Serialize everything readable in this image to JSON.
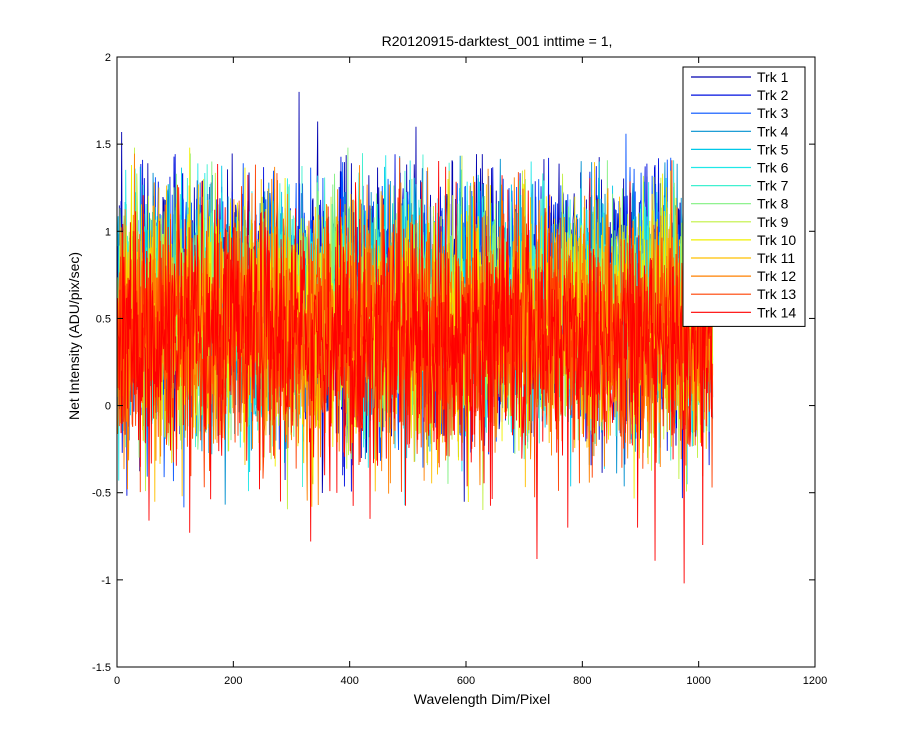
{
  "chart_data": {
    "type": "line",
    "title": "R20120915-darktest_001 inttime = 1,",
    "xlabel": "Wavelength Dim/Pixel",
    "ylabel": "Net Intensity (ADU/pix/sec)",
    "xlim": [
      0,
      1200
    ],
    "ylim": [
      -1.5,
      2
    ],
    "xticks": [
      0,
      200,
      400,
      600,
      800,
      1000,
      1200
    ],
    "yticks": [
      -1.5,
      -1,
      -0.5,
      0,
      0.5,
      1,
      1.5,
      2
    ],
    "xtick_labels": [
      "0",
      "200",
      "400",
      "600",
      "800",
      "1000",
      "1200"
    ],
    "ytick_labels": [
      "-1.5",
      "-1",
      "-0.5",
      "0",
      "0.5",
      "1",
      "1.5",
      "2"
    ],
    "x_range": [
      1,
      1024
    ],
    "grid": false,
    "legend_position": "top-right",
    "series": [
      {
        "name": "Trk 1",
        "color": "#0000b0",
        "mean": 0.62,
        "spread": 0.38
      },
      {
        "name": "Trk 2",
        "color": "#0010e0",
        "mean": 0.6,
        "spread": 0.36
      },
      {
        "name": "Trk 3",
        "color": "#0050ff",
        "mean": 0.58,
        "spread": 0.35
      },
      {
        "name": "Trk 4",
        "color": "#0090d0",
        "mean": 0.56,
        "spread": 0.34
      },
      {
        "name": "Trk 5",
        "color": "#00c8e8",
        "mean": 0.55,
        "spread": 0.33
      },
      {
        "name": "Trk 6",
        "color": "#20e8e8",
        "mean": 0.54,
        "spread": 0.33
      },
      {
        "name": "Trk 7",
        "color": "#40f0d0",
        "mean": 0.53,
        "spread": 0.33
      },
      {
        "name": "Trk 8",
        "color": "#80f080",
        "mean": 0.52,
        "spread": 0.33
      },
      {
        "name": "Trk 9",
        "color": "#c0f040",
        "mean": 0.5,
        "spread": 0.33
      },
      {
        "name": "Trk 10",
        "color": "#f0f000",
        "mean": 0.48,
        "spread": 0.33
      },
      {
        "name": "Trk 11",
        "color": "#ffc000",
        "mean": 0.45,
        "spread": 0.33
      },
      {
        "name": "Trk 12",
        "color": "#ff8000",
        "mean": 0.42,
        "spread": 0.34
      },
      {
        "name": "Trk 13",
        "color": "#ff4000",
        "mean": 0.4,
        "spread": 0.35
      },
      {
        "name": "Trk 14",
        "color": "#ff0000",
        "mean": 0.38,
        "spread": 0.36
      }
    ],
    "spikes": [
      {
        "x": 313,
        "y": 1.8,
        "series": 0
      },
      {
        "x": 345,
        "y": 1.63,
        "series": 0
      },
      {
        "x": 514,
        "y": 1.6,
        "series": 0
      },
      {
        "x": 875,
        "y": 1.56,
        "series": 2
      },
      {
        "x": 8,
        "y": 1.57,
        "series": 0
      },
      {
        "x": 30,
        "y": 1.48,
        "series": 8
      },
      {
        "x": 125,
        "y": 1.48,
        "series": 9
      },
      {
        "x": 397,
        "y": 1.48,
        "series": 7
      },
      {
        "x": 975,
        "y": -1.02,
        "series": 13
      },
      {
        "x": 722,
        "y": -0.88,
        "series": 13
      },
      {
        "x": 925,
        "y": -0.89,
        "series": 13
      },
      {
        "x": 1007,
        "y": -0.8,
        "series": 13
      },
      {
        "x": 333,
        "y": -0.78,
        "series": 13
      },
      {
        "x": 125,
        "y": -0.73,
        "series": 13
      },
      {
        "x": 775,
        "y": -0.7,
        "series": 13
      },
      {
        "x": 895,
        "y": -0.7,
        "series": 13
      },
      {
        "x": 55,
        "y": -0.66,
        "series": 13
      },
      {
        "x": 435,
        "y": -0.65,
        "series": 13
      }
    ]
  }
}
